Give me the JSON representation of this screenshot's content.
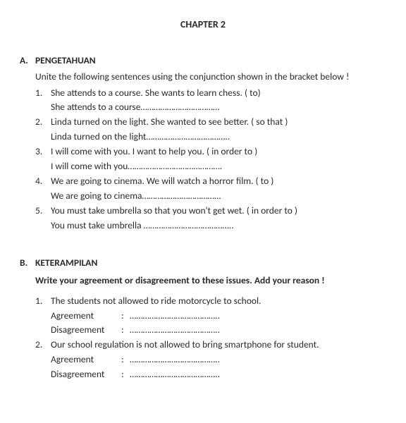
{
  "chapter_title": "CHAPTER 2",
  "sectionA": {
    "letter": "A.",
    "title": "PENGETAHUAN",
    "instruction": "Unite the following sentences using the conjunction shown in the bracket below !",
    "items": [
      {
        "num": "1.",
        "q": "She attends to a course. She wants to learn chess. ( to)",
        "a": "She attends to a course………………………………"
      },
      {
        "num": "2.",
        "q": "Linda turned on the light. She wanted to see better. ( so that )",
        "a": "Linda turned on the light……………………………….."
      },
      {
        "num": "3.",
        "q": "I will come with you. I want to help you. ( in order to )",
        "a": "I will come with you……………………………………."
      },
      {
        "num": "4.",
        "q": "We are going to cinema. We will watch a horror film. ( to )",
        "a": "We are going to cinema………………………………"
      },
      {
        "num": "5.",
        "q": "You must take umbrella so that you won't get wet. ( in order to )",
        "a": "You must take umbrella ………………………………….."
      }
    ]
  },
  "sectionB": {
    "letter": "B.",
    "title": "KETERAMPILAN",
    "instruction": "Write your agreement or disagreement to these issues.  Add your reason  !",
    "agree_label": "Agreement",
    "disagree_label": "Disagreement",
    "colon": ":",
    "dots": "…………………………………..",
    "items": [
      {
        "num": "1.",
        "q": "The students not allowed to ride motorcycle to school."
      },
      {
        "num": "2.",
        "q": "Our  school regulation is not allowed to bring smartphone for student."
      }
    ]
  }
}
